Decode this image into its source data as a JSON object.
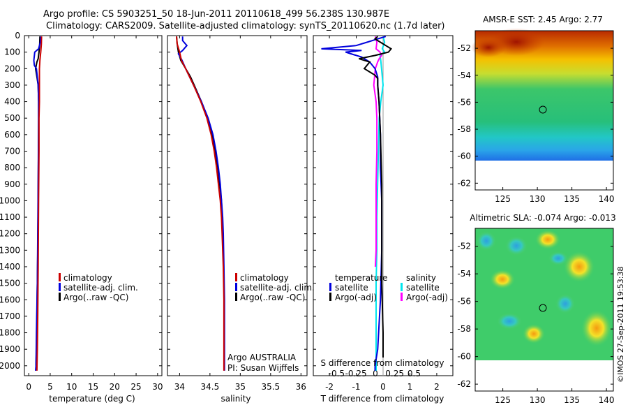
{
  "header": {
    "line1": "Argo profile: CS 5903251_50 18-Jun-2011 20110618_499 56.238S 130.987E",
    "line2": "Climatology: CARS2009. Satellite-adjusted climatology: synTS_20110620.nc (1.7d later)"
  },
  "colors": {
    "climatology": "#cc0000",
    "satellite": "#0000dd",
    "argo": "#000000",
    "sal_satellite": "#00e5ee",
    "sal_argo": "#ff00ff"
  },
  "chart_data": [
    {
      "type": "line",
      "name": "temperature",
      "xlabel": "temperature (deg C)",
      "xlim": [
        -1,
        31
      ],
      "ylim": [
        2060,
        0
      ],
      "xticks": [
        "0",
        "5",
        "10",
        "15",
        "20",
        "25",
        "30"
      ],
      "yticks": [
        "0",
        "100",
        "200",
        "300",
        "400",
        "500",
        "600",
        "700",
        "800",
        "900",
        "1000",
        "1100",
        "1200",
        "1300",
        "1400",
        "1500",
        "1600",
        "1700",
        "1800",
        "1900",
        "2000"
      ],
      "legend": [
        "climatology",
        "satellite-adj. clim.",
        "Argo(..raw -QC)"
      ],
      "series": [
        {
          "name": "climatology",
          "depth": [
            5,
            50,
            100,
            150,
            200,
            300,
            400,
            500,
            700,
            1000,
            1400,
            1700,
            1900,
            2030
          ],
          "values": [
            3.0,
            2.95,
            2.8,
            2.6,
            2.5,
            2.5,
            2.5,
            2.4,
            2.4,
            2.3,
            2.2,
            2.1,
            2.0,
            1.9
          ]
        },
        {
          "name": "satellite-adj. clim.",
          "depth": [
            5,
            40,
            80,
            100,
            150,
            180,
            200,
            300,
            400,
            600,
            900,
            1200,
            1500,
            1800,
            2000,
            2030
          ],
          "values": [
            2.8,
            2.7,
            2.3,
            1.4,
            1.2,
            1.3,
            1.8,
            2.2,
            2.3,
            2.3,
            2.2,
            2.1,
            2.0,
            1.8,
            1.7,
            1.6
          ]
        },
        {
          "name": "Argo(..raw -QC)",
          "depth": [
            5,
            50,
            100,
            140,
            160,
            200,
            250,
            300,
            400,
            500,
            700,
            1000,
            1300,
            1500,
            1700,
            1900,
            2000
          ],
          "values": [
            2.6,
            2.55,
            2.4,
            2.2,
            1.9,
            1.6,
            1.9,
            2.2,
            2.3,
            2.3,
            2.25,
            2.2,
            2.1,
            2.0,
            1.9,
            1.8,
            1.7
          ]
        }
      ]
    },
    {
      "type": "line",
      "name": "salinity",
      "xlabel": "salinity",
      "xlim": [
        33.8,
        36.1
      ],
      "ylim": [
        2060,
        0
      ],
      "xticks": [
        "34",
        "34.5",
        "35",
        "35.5",
        "36"
      ],
      "legend": [
        "climatology",
        "satellite-adj. clim.",
        "Argo(..raw -QC)"
      ],
      "annotation": [
        "Argo AUSTRALIA",
        "PI: Susan Wijffels"
      ],
      "series": [
        {
          "name": "climatology",
          "depth": [
            5,
            50,
            100,
            150,
            200,
            300,
            400,
            500,
            600,
            700,
            800,
            900,
            1000,
            1100,
            1200,
            1400,
            1600,
            1800,
            2000,
            2030
          ],
          "values": [
            33.95,
            33.96,
            34.0,
            34.03,
            34.1,
            34.23,
            34.35,
            34.45,
            34.52,
            34.57,
            34.61,
            34.64,
            34.67,
            34.69,
            34.7,
            34.72,
            34.73,
            34.73,
            34.73,
            34.73
          ]
        },
        {
          "name": "satellite-adj. clim.",
          "depth": [
            5,
            30,
            60,
            90,
            110,
            150,
            200,
            300,
            400,
            500,
            600,
            700,
            800,
            900,
            1000,
            1100,
            1200,
            1400,
            1600,
            1800,
            2000,
            2030
          ],
          "values": [
            34.05,
            34.05,
            34.12,
            34.05,
            33.98,
            34.04,
            34.1,
            34.23,
            34.36,
            34.47,
            34.55,
            34.6,
            34.64,
            34.67,
            34.69,
            34.71,
            34.72,
            34.73,
            34.74,
            34.74,
            34.74,
            34.74
          ]
        },
        {
          "name": "Argo(..raw -QC)",
          "depth": [
            5,
            50,
            100,
            150,
            200,
            250,
            300,
            400,
            500,
            600,
            700,
            800,
            900,
            1000,
            1100,
            1200,
            1300,
            1400
          ],
          "values": [
            33.95,
            33.96,
            33.98,
            34.02,
            34.1,
            34.18,
            34.24,
            34.36,
            34.46,
            34.54,
            34.59,
            34.63,
            34.66,
            34.69,
            34.7,
            34.71,
            34.72,
            34.72
          ]
        }
      ]
    },
    {
      "type": "line",
      "name": "difference",
      "xlabel": "T difference from climatology",
      "xlabel_top": "S difference from climatology",
      "xlim_T": [
        -2.6,
        2.6
      ],
      "xticks_T": [
        "-2",
        "-1",
        "0",
        "1",
        "2"
      ],
      "xticks_S": [
        "-0.5",
        "-0.25",
        "0",
        "0.25",
        "0.5"
      ],
      "legend_T_title": "temperature",
      "legend_S_title": "salinity",
      "legend_T": [
        "satellite",
        "Argo(-adj)"
      ],
      "legend_S": [
        "satellite",
        "Argo(-adj)"
      ],
      "series": [
        {
          "name": "T satellite",
          "depth": [
            5,
            20,
            40,
            60,
            80,
            90,
            100,
            110,
            130,
            160,
            200,
            250,
            300,
            400,
            600,
            800,
            1000,
            1300,
            1600,
            1900,
            2000,
            2030
          ],
          "values": [
            0.1,
            -0.2,
            -0.6,
            -1.0,
            -2.3,
            -0.8,
            -1.4,
            -1.2,
            -0.8,
            -0.5,
            -0.3,
            -0.2,
            -0.2,
            -0.15,
            -0.1,
            -0.1,
            -0.05,
            -0.05,
            -0.1,
            -0.2,
            -0.3,
            -0.3
          ]
        },
        {
          "name": "T Argo(-adj)",
          "depth": [
            5,
            20,
            40,
            60,
            80,
            100,
            120,
            140,
            160,
            180,
            200,
            220,
            240,
            260,
            300,
            400,
            600,
            900,
            1200,
            1500,
            1800,
            1950
          ],
          "values": [
            -0.2,
            -0.3,
            -0.1,
            0.1,
            0.3,
            0.2,
            -0.3,
            -0.9,
            -0.5,
            -0.6,
            -0.7,
            -0.5,
            -0.3,
            -0.2,
            -0.2,
            -0.15,
            -0.1,
            -0.05,
            -0.05,
            -0.05,
            0.0,
            0.0
          ]
        },
        {
          "name": "S satellite",
          "depth": [
            5,
            40,
            80,
            100,
            120,
            150,
            200,
            300,
            400,
            500,
            700,
            900,
            1100,
            1300,
            1500,
            1800,
            2000,
            2030
          ],
          "values": [
            0.1,
            0.12,
            0.09,
            0.12,
            0.06,
            0.07,
            0.08,
            0.1,
            0.07,
            0.05,
            0.04,
            0.03,
            0.02,
            0.02,
            0.01,
            0.01,
            0.01,
            0.01
          ]
        },
        {
          "name": "S Argo(-adj)",
          "depth": [
            5,
            40,
            80,
            100,
            120,
            140,
            160,
            200,
            250,
            300,
            400,
            500,
            700,
            900,
            1100,
            1300,
            1400
          ],
          "values": [
            0.0,
            0.02,
            0.01,
            0.06,
            0.08,
            0.05,
            0.03,
            0.0,
            -0.01,
            -0.02,
            0.01,
            0.02,
            0.02,
            0.01,
            0.01,
            0.01,
            0.0
          ]
        }
      ]
    },
    {
      "type": "heatmap",
      "name": "sst_map",
      "title": "AMSR-E SST: 2.45  Argo: 2.77",
      "xlim": [
        121,
        141
      ],
      "ylim": [
        -62.5,
        -50.7
      ],
      "xticks": [
        "125",
        "130",
        "135",
        "140"
      ],
      "yticks": [
        "-52",
        "-54",
        "-56",
        "-58",
        "-60",
        "-62"
      ],
      "marker": {
        "lon": 130.987,
        "lat": -56.238
      }
    },
    {
      "type": "heatmap",
      "name": "sla_map",
      "title": "Altimetric SLA: -0.074  Argo: -0.013",
      "xlim": [
        121,
        141
      ],
      "ylim": [
        -62.5,
        -50.7
      ],
      "xticks": [
        "125",
        "130",
        "135",
        "140"
      ],
      "yticks": [
        "-52",
        "-54",
        "-56",
        "-58",
        "-60",
        "-62"
      ],
      "marker": {
        "lon": 130.987,
        "lat": -56.238
      }
    }
  ],
  "footer": {
    "credit": "©IMOS 27-Sep-2011 19:53:38"
  }
}
